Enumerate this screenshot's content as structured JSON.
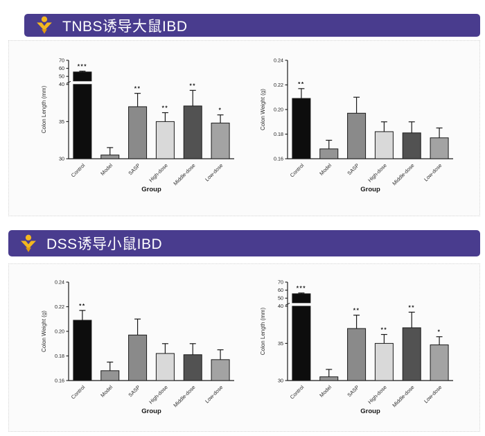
{
  "theme": {
    "banner_color": "#493c8e",
    "banner_text_color": "#ffffff",
    "logo_yellow": "#f3b71f",
    "logo_orange": "#e0990f",
    "panel_bg": "#fbfbfb",
    "panel_border_color": "#d5d5d5",
    "axis_color": "#1a1a1a"
  },
  "panels": [
    {
      "title": "TNBS诱导大鼠IBD"
    },
    {
      "title": "DSS诱导小鼠IBD"
    }
  ],
  "chart_data": [
    {
      "id": "tnbs-colon-length",
      "type": "bar",
      "title": "",
      "xlabel": "Group",
      "ylabel": "Colon Length (mm)",
      "categories": [
        "Control",
        "Model",
        "SASP",
        "High-dose",
        "Middle-dose",
        "Low-dose"
      ],
      "values": [
        55.5,
        30.5,
        37.0,
        35.0,
        37.1,
        34.8
      ],
      "errors_plus": [
        1.0,
        1.0,
        1.8,
        1.2,
        2.1,
        1.1
      ],
      "significance": [
        "***",
        "",
        "**",
        "**",
        "**",
        "*"
      ],
      "bar_colors": [
        "#0d0d0d",
        "#949494",
        "#8a8a8a",
        "#d9d9d9",
        "#525252",
        "#a3a3a3"
      ],
      "ylim": [
        30,
        70
      ],
      "grid": false,
      "legend": "none",
      "axis_break": {
        "break_value": 40,
        "lower_ticks": [
          30,
          35,
          40
        ],
        "upper_ticks": [
          50,
          60,
          70
        ],
        "lower_fraction": 0.755
      }
    },
    {
      "id": "tnbs-colon-weight",
      "type": "bar",
      "title": "",
      "xlabel": "Group",
      "ylabel": "Colon Weight (g)",
      "categories": [
        "Control",
        "Model",
        "SASP",
        "High-dose",
        "Middle-dose",
        "Low-dose"
      ],
      "values": [
        0.209,
        0.168,
        0.197,
        0.182,
        0.181,
        0.177
      ],
      "errors_plus": [
        0.008,
        0.007,
        0.013,
        0.008,
        0.009,
        0.008
      ],
      "significance": [
        "**",
        "",
        "",
        "",
        "",
        ""
      ],
      "bar_colors": [
        "#0d0d0d",
        "#949494",
        "#8a8a8a",
        "#d9d9d9",
        "#525252",
        "#a3a3a3"
      ],
      "ylim": [
        0.16,
        0.24
      ],
      "yticks": [
        0.16,
        0.18,
        0.2,
        0.22,
        0.24
      ],
      "ytick_labels": [
        "0.16",
        "0.18",
        "0.20",
        "0.22",
        "0.24"
      ],
      "grid": false,
      "legend": "none"
    },
    {
      "id": "dss-colon-weight",
      "type": "bar",
      "title": "",
      "xlabel": "Group",
      "ylabel": "Colon Weight (g)",
      "categories": [
        "Control",
        "Model",
        "SASP",
        "High-dose",
        "Middle-dose",
        "Low-dose"
      ],
      "values": [
        0.209,
        0.168,
        0.197,
        0.182,
        0.181,
        0.177
      ],
      "errors_plus": [
        0.008,
        0.007,
        0.013,
        0.008,
        0.009,
        0.008
      ],
      "significance": [
        "**",
        "",
        "",
        "",
        "",
        ""
      ],
      "bar_colors": [
        "#0d0d0d",
        "#949494",
        "#8a8a8a",
        "#d9d9d9",
        "#525252",
        "#a3a3a3"
      ],
      "ylim": [
        0.16,
        0.24
      ],
      "yticks": [
        0.16,
        0.18,
        0.2,
        0.22,
        0.24
      ],
      "ytick_labels": [
        "0.16",
        "0.18",
        "0.20",
        "0.22",
        "0.24"
      ],
      "grid": false,
      "legend": "none"
    },
    {
      "id": "dss-colon-length",
      "type": "bar",
      "title": "",
      "xlabel": "Group",
      "ylabel": "Colon Length (mm)",
      "categories": [
        "Control",
        "Model",
        "SASP",
        "High-dose",
        "Middle-dose",
        "Low-dose"
      ],
      "values": [
        55.5,
        30.5,
        37.0,
        35.0,
        37.1,
        34.8
      ],
      "errors_plus": [
        1.0,
        1.0,
        1.8,
        1.2,
        2.1,
        1.1
      ],
      "significance": [
        "***",
        "",
        "**",
        "**",
        "**",
        "*"
      ],
      "bar_colors": [
        "#0d0d0d",
        "#949494",
        "#8a8a8a",
        "#d9d9d9",
        "#525252",
        "#a3a3a3"
      ],
      "ylim": [
        30,
        70
      ],
      "grid": false,
      "legend": "none",
      "axis_break": {
        "break_value": 40,
        "lower_ticks": [
          30,
          35,
          40
        ],
        "upper_ticks": [
          50,
          60,
          70
        ],
        "lower_fraction": 0.755
      }
    }
  ]
}
